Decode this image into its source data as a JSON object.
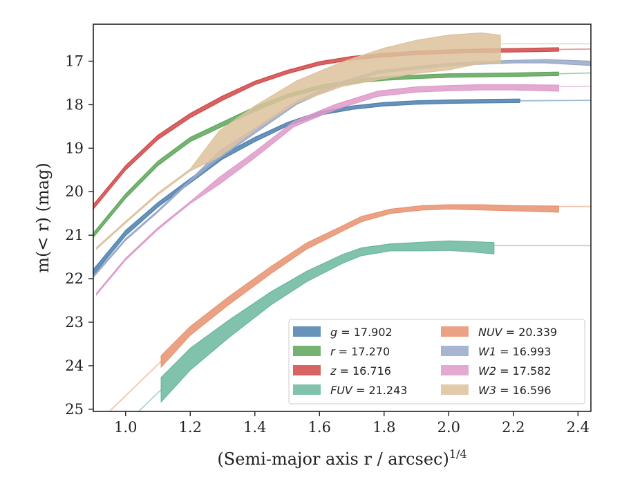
{
  "chart_data": {
    "type": "line",
    "xlabel": "(Semi-major axis r / arcsec)",
    "xlabel_sup": "1/4",
    "ylabel": "m(< r) (mag)",
    "xlim": [
      0.9,
      2.44
    ],
    "ylim": [
      25.05,
      16.15
    ],
    "y_inverted": true,
    "x_ticks": [
      1.0,
      1.2,
      1.4,
      1.6,
      1.8,
      2.0,
      2.2,
      2.4
    ],
    "x_tick_labels": [
      "1.0",
      "1.2",
      "1.4",
      "1.6",
      "1.8",
      "2.0",
      "2.2",
      "2.4"
    ],
    "y_ticks": [
      17,
      18,
      19,
      20,
      21,
      22,
      23,
      24,
      25
    ],
    "y_tick_labels": [
      "17",
      "18",
      "19",
      "20",
      "21",
      "22",
      "23",
      "24",
      "25"
    ],
    "legend_position": "lower-right",
    "series": [
      {
        "name": "g",
        "label": "g = 17.902",
        "color": "#4c7fad",
        "x": [
          0.9,
          1.0,
          1.1,
          1.2,
          1.3,
          1.4,
          1.5,
          1.6,
          1.7,
          1.8,
          1.9,
          2.0,
          2.1,
          2.22
        ],
        "y": [
          21.85,
          20.95,
          20.3,
          19.75,
          19.2,
          18.8,
          18.45,
          18.2,
          18.07,
          17.99,
          17.95,
          17.93,
          17.92,
          17.91
        ],
        "band": [
          0.06,
          0.06,
          0.05,
          0.05,
          0.05,
          0.05,
          0.04,
          0.04,
          0.04,
          0.04,
          0.04,
          0.04,
          0.04,
          0.04
        ],
        "extension": {
          "x": [
            2.22,
            2.44
          ],
          "y": [
            17.91,
            17.9
          ]
        }
      },
      {
        "name": "r",
        "label": "r = 17.270",
        "color": "#5ea65a",
        "x": [
          0.9,
          1.0,
          1.1,
          1.2,
          1.3,
          1.4,
          1.5,
          1.6,
          1.7,
          1.8,
          1.9,
          2.0,
          2.1,
          2.2,
          2.34
        ],
        "y": [
          21.0,
          20.1,
          19.35,
          18.8,
          18.45,
          18.1,
          17.8,
          17.6,
          17.47,
          17.4,
          17.36,
          17.33,
          17.32,
          17.31,
          17.29
        ],
        "band": [
          0.05,
          0.05,
          0.05,
          0.05,
          0.05,
          0.05,
          0.04,
          0.04,
          0.04,
          0.04,
          0.04,
          0.04,
          0.04,
          0.04,
          0.04
        ],
        "extension": {
          "x": [
            2.34,
            2.44
          ],
          "y": [
            17.29,
            17.27
          ]
        }
      },
      {
        "name": "z",
        "label": "z = 16.716",
        "color": "#d04848",
        "x": [
          0.9,
          1.0,
          1.1,
          1.2,
          1.3,
          1.4,
          1.5,
          1.6,
          1.7,
          1.8,
          1.9,
          2.0,
          2.1,
          2.2,
          2.34
        ],
        "y": [
          20.35,
          19.45,
          18.75,
          18.25,
          17.85,
          17.5,
          17.25,
          17.05,
          16.93,
          16.86,
          16.81,
          16.78,
          16.76,
          16.75,
          16.73
        ],
        "band": [
          0.05,
          0.05,
          0.05,
          0.05,
          0.05,
          0.04,
          0.04,
          0.04,
          0.04,
          0.04,
          0.04,
          0.04,
          0.04,
          0.04,
          0.04
        ],
        "extension": {
          "x": [
            2.34,
            2.44
          ],
          "y": [
            16.73,
            16.72
          ]
        }
      },
      {
        "name": "FUV",
        "label": "FUV = 21.243",
        "color": "#6ab79e",
        "x": [
          1.11,
          1.2,
          1.32,
          1.45,
          1.56,
          1.67,
          1.73,
          1.82,
          1.92,
          2.0,
          2.08,
          2.14
        ],
        "y": [
          24.55,
          23.85,
          23.15,
          22.45,
          21.95,
          21.55,
          21.38,
          21.28,
          21.26,
          21.24,
          21.27,
          21.3
        ],
        "band": [
          0.28,
          0.25,
          0.2,
          0.15,
          0.12,
          0.1,
          0.09,
          0.08,
          0.1,
          0.11,
          0.12,
          0.13
        ],
        "extension_left": {
          "x": [
            1.04,
            1.11
          ],
          "y": [
            25.05,
            24.55
          ]
        },
        "extension": {
          "x": [
            2.14,
            2.44
          ],
          "y": [
            21.24,
            21.24
          ]
        }
      },
      {
        "name": "NUV",
        "label": "NUV = 20.339",
        "color": "#e8926f",
        "x": [
          1.11,
          1.2,
          1.32,
          1.45,
          1.56,
          1.67,
          1.73,
          1.82,
          1.92,
          2.0,
          2.1,
          2.2,
          2.34
        ],
        "y": [
          23.9,
          23.2,
          22.5,
          21.8,
          21.25,
          20.85,
          20.63,
          20.45,
          20.37,
          20.35,
          20.36,
          20.38,
          20.4
        ],
        "band": [
          0.13,
          0.1,
          0.09,
          0.08,
          0.07,
          0.06,
          0.06,
          0.05,
          0.05,
          0.05,
          0.06,
          0.06,
          0.07
        ],
        "extension_left": {
          "x": [
            0.95,
            1.11
          ],
          "y": [
            25.05,
            23.9
          ]
        },
        "extension": {
          "x": [
            2.34,
            2.44
          ],
          "y": [
            20.34,
            20.34
          ]
        }
      },
      {
        "name": "W1",
        "label": "W1 = 16.993",
        "color": "#99a8c8",
        "x": [
          0.9,
          1.0,
          1.1,
          1.2,
          1.29,
          1.4,
          1.53,
          1.65,
          1.78,
          1.9,
          2.0,
          2.1,
          2.2,
          2.3,
          2.44
        ],
        "y": [
          21.95,
          21.1,
          20.45,
          19.75,
          19.15,
          18.6,
          17.95,
          17.55,
          17.25,
          17.15,
          17.08,
          17.04,
          17.01,
          17.0,
          17.05
        ],
        "band": [
          0.02,
          0.02,
          0.02,
          0.02,
          0.08,
          0.06,
          0.04,
          0.04,
          0.03,
          0.03,
          0.03,
          0.03,
          0.03,
          0.04,
          0.05
        ],
        "extension": {
          "x": [
            2.44,
            2.44
          ],
          "y": [
            17.05,
            17.05
          ]
        }
      },
      {
        "name": "W2",
        "label": "W2 = 17.582",
        "color": "#de9ac8",
        "x": [
          0.91,
          1.0,
          1.1,
          1.2,
          1.29,
          1.4,
          1.52,
          1.65,
          1.78,
          1.9,
          2.0,
          2.1,
          2.2,
          2.34
        ],
        "y": [
          22.35,
          21.55,
          20.85,
          20.25,
          19.75,
          19.15,
          18.45,
          18.05,
          17.75,
          17.65,
          17.62,
          17.6,
          17.6,
          17.62
        ],
        "band": [
          0.02,
          0.02,
          0.02,
          0.02,
          0.08,
          0.07,
          0.06,
          0.06,
          0.06,
          0.06,
          0.06,
          0.06,
          0.06,
          0.07
        ],
        "extension": {
          "x": [
            2.34,
            2.44
          ],
          "y": [
            17.58,
            17.58
          ]
        }
      },
      {
        "name": "W3",
        "label": "W3 = 16.596",
        "color": "#dcc29c",
        "x": [
          0.91,
          1.0,
          1.1,
          1.2,
          1.29,
          1.4,
          1.53,
          1.67,
          1.8,
          1.9,
          2.0,
          2.1,
          2.16
        ],
        "y": [
          21.3,
          20.7,
          20.05,
          19.5,
          18.9,
          18.3,
          17.7,
          17.3,
          17.05,
          16.9,
          16.8,
          16.7,
          16.72
        ],
        "band": [
          0.02,
          0.02,
          0.02,
          0.02,
          0.3,
          0.27,
          0.25,
          0.28,
          0.35,
          0.38,
          0.4,
          0.35,
          0.32
        ],
        "extension": {
          "x": [
            2.16,
            2.44
          ],
          "y": [
            16.6,
            16.6
          ]
        }
      }
    ]
  }
}
